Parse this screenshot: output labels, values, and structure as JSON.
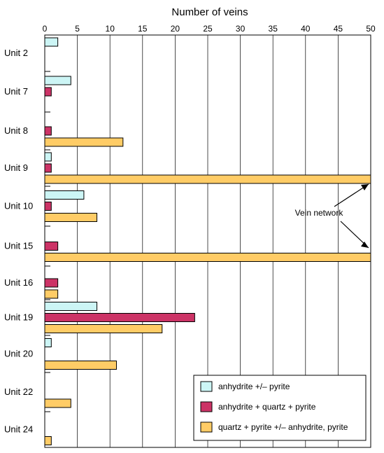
{
  "chart_data": {
    "type": "bar",
    "orientation": "horizontal",
    "title": "",
    "xlabel": "Number of veins",
    "ylabel": "",
    "xlim": [
      0,
      50
    ],
    "xticks": [
      0,
      5,
      10,
      15,
      20,
      25,
      30,
      35,
      40,
      45,
      50
    ],
    "grid": true,
    "legend_position": "bottom-right",
    "x_axis_position": "top",
    "categories": [
      "Unit 2",
      "Unit 7",
      "Unit 8",
      "Unit 9",
      "Unit 10",
      "Unit 15",
      "Unit 16",
      "Unit 19",
      "Unit 20",
      "Unit 22",
      "Unit 24"
    ],
    "series": [
      {
        "name": "anhydrite +/– pyrite",
        "color": "#ccf5f5",
        "values": [
          2,
          4,
          0,
          1,
          6,
          0,
          0,
          8,
          1,
          0,
          0
        ]
      },
      {
        "name": "anhydrite + quartz + pyrite",
        "color": "#cc3366",
        "values": [
          0,
          1,
          1,
          1,
          1,
          2,
          2,
          23,
          0,
          0,
          0
        ]
      },
      {
        "name": "quartz + pyrite +/– anhydrite, pyrite",
        "color": "#ffcc66",
        "values": [
          0,
          0,
          12,
          50,
          8,
          50,
          2,
          18,
          11,
          4,
          1
        ]
      }
    ],
    "annotations": [
      {
        "text": "Vein network",
        "points_to": [
          "Unit 9",
          "Unit 15"
        ]
      }
    ]
  }
}
